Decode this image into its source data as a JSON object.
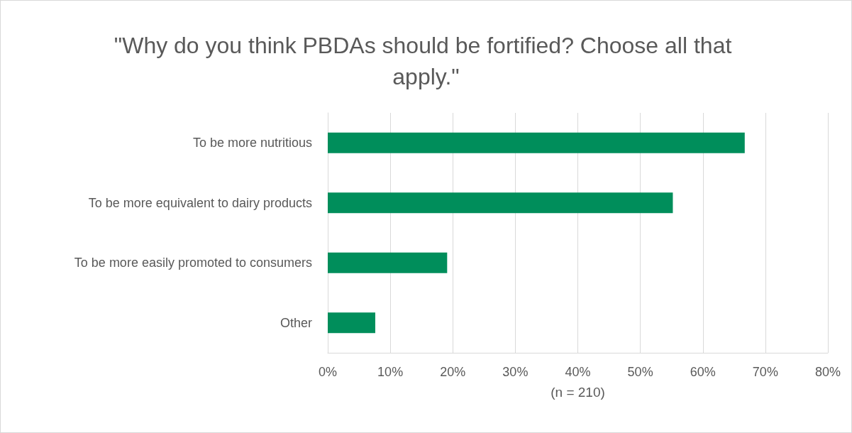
{
  "chart_data": {
    "type": "bar",
    "orientation": "horizontal",
    "title": "\"Why do you think PBDAs should be fortified? Choose all that apply.\"",
    "xlabel": "(n = 210)",
    "categories": [
      "To be more nutritious",
      "To be more equivalent to dairy products",
      "To be more easily promoted to consumers",
      "Other"
    ],
    "values": [
      66.7,
      55.2,
      19.1,
      7.6
    ],
    "color": "#008e5b",
    "xlim": [
      0,
      80
    ],
    "xticks": [
      {
        "value": 0,
        "label": "0%"
      },
      {
        "value": 10,
        "label": "10%"
      },
      {
        "value": 20,
        "label": "20%"
      },
      {
        "value": 30,
        "label": "30%"
      },
      {
        "value": 40,
        "label": "40%"
      },
      {
        "value": 50,
        "label": "50%"
      },
      {
        "value": 60,
        "label": "60%"
      },
      {
        "value": 70,
        "label": "70%"
      },
      {
        "value": 80,
        "label": "80%"
      }
    ],
    "grid": "x"
  }
}
